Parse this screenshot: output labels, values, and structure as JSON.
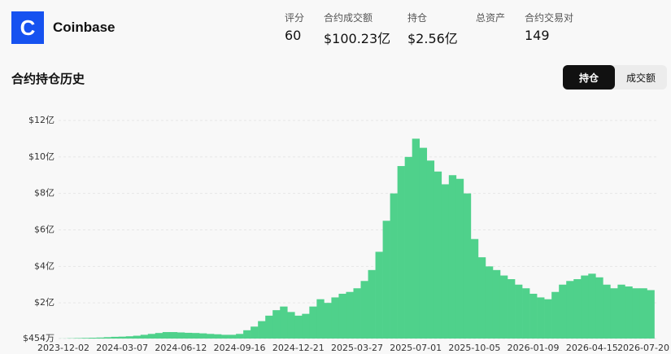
{
  "header": {
    "name": "Coinbase",
    "logo_letter": "C",
    "stats": [
      {
        "label": "评分",
        "value": "60"
      },
      {
        "label": "合约成交额",
        "value": "$100.23亿"
      },
      {
        "label": "持仓",
        "value": "$2.56亿"
      },
      {
        "label": "总资产"
      },
      {
        "label": "合约交易对",
        "value": "149"
      }
    ]
  },
  "section": {
    "title": "合约持仓历史",
    "tabs": [
      "持仓",
      "成交额"
    ]
  },
  "chart_data": {
    "type": "bar",
    "color": "#4fd18b",
    "grid": true,
    "categories": [
      "2023-12-02",
      null,
      null,
      null,
      null,
      null,
      null,
      null,
      "2024-03-07",
      null,
      null,
      null,
      null,
      null,
      null,
      null,
      "2024-06-12",
      null,
      null,
      null,
      null,
      null,
      null,
      null,
      "2024-09-16",
      null,
      null,
      null,
      null,
      null,
      null,
      null,
      "2024-12-21",
      null,
      null,
      null,
      null,
      null,
      null,
      null,
      "2025-03-27",
      null,
      null,
      null,
      null,
      null,
      null,
      null,
      "2025-07-01",
      null,
      null,
      null,
      null,
      null,
      null,
      null,
      "2025-10-05",
      null,
      null,
      null,
      null,
      null,
      null,
      null,
      "2026-01-09",
      null,
      null,
      null,
      null,
      null,
      null,
      null,
      "2026-04-15",
      null,
      null,
      null,
      null,
      null,
      null,
      null,
      "2026-07-20"
    ],
    "values": [
      0.05,
      0.06,
      0.07,
      0.08,
      0.09,
      0.1,
      0.12,
      0.14,
      0.15,
      0.17,
      0.2,
      0.25,
      0.3,
      0.35,
      0.4,
      0.4,
      0.38,
      0.36,
      0.35,
      0.33,
      0.3,
      0.28,
      0.25,
      0.25,
      0.3,
      0.5,
      0.7,
      1.0,
      1.3,
      1.6,
      1.8,
      1.5,
      1.3,
      1.4,
      1.8,
      2.2,
      2.0,
      2.3,
      2.5,
      2.6,
      2.8,
      3.2,
      3.8,
      4.8,
      6.5,
      8.0,
      9.5,
      10.0,
      11.0,
      10.5,
      9.8,
      9.2,
      8.5,
      9.0,
      8.8,
      8.0,
      5.5,
      4.5,
      4.0,
      3.8,
      3.5,
      3.3,
      3.0,
      2.8,
      2.5,
      2.3,
      2.2,
      2.6,
      3.0,
      3.2,
      3.3,
      3.5,
      3.6,
      3.4,
      3.0,
      2.8,
      3.0,
      2.9,
      2.8,
      2.8,
      2.7
    ],
    "ylim": [
      0.0454,
      12
    ],
    "yticks": [
      {
        "value": 0.0454,
        "label": "$454万"
      },
      {
        "value": 2,
        "label": "$2亿"
      },
      {
        "value": 4,
        "label": "$4亿"
      },
      {
        "value": 6,
        "label": "$6亿"
      },
      {
        "value": 8,
        "label": "$8亿"
      },
      {
        "value": 10,
        "label": "$10亿"
      },
      {
        "value": 12,
        "label": "$12亿"
      }
    ]
  }
}
